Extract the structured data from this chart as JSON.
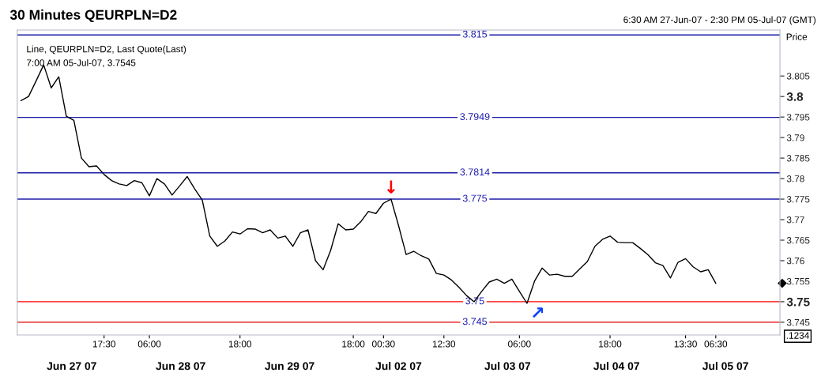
{
  "chart_data": {
    "type": "line",
    "title": "30 Minutes QEURPLN=D2",
    "subtitle": "6:30 AM 27-Jun-07 - 2:30 PM 05-Jul-07 (GMT)",
    "ylabel": "Price",
    "annotations": [
      "Line, QEURPLN=D2, Last Quote(Last)",
      "7:00 AM 05-Jul-07, 3.7545",
      ".1234",
      "Jun 27 07",
      "Jun 28 07",
      "Jun 29 07",
      "Jul 02 07",
      "Jul 03 07",
      "Jul 04 07",
      "Jul 05 07",
      {
        "text": "↓",
        "y": 3.775
      },
      {
        "text": "↗",
        "y": 3.7496
      }
    ],
    "categories": [
      null,
      null,
      null,
      null,
      null,
      null,
      null,
      null,
      null,
      null,
      null,
      "17:30",
      null,
      null,
      null,
      null,
      null,
      "06:00",
      null,
      null,
      null,
      null,
      null,
      null,
      null,
      null,
      null,
      null,
      null,
      "18:00",
      null,
      null,
      null,
      null,
      null,
      null,
      null,
      null,
      null,
      null,
      null,
      null,
      null,
      null,
      "18:00",
      null,
      null,
      null,
      "00:30",
      null,
      null,
      null,
      null,
      null,
      null,
      null,
      "12:30",
      null,
      null,
      null,
      null,
      null,
      null,
      null,
      null,
      null,
      "06:00",
      null,
      null,
      null,
      null,
      null,
      null,
      null,
      null,
      null,
      null,
      null,
      "18:00",
      null,
      null,
      null,
      null,
      null,
      null,
      null,
      null,
      null,
      "13:30",
      null,
      null,
      null,
      "06:30",
      null,
      null,
      null,
      null,
      null,
      null,
      null,
      null
    ],
    "series": [
      {
        "color": "#000000",
        "values": [
          3.799,
          3.8,
          3.8038,
          3.8077,
          3.8021,
          3.8048,
          3.7952,
          3.7942,
          3.785,
          3.7829,
          3.7831,
          3.781,
          3.7795,
          3.7787,
          3.7783,
          3.7795,
          3.779,
          3.7758,
          3.78,
          3.7787,
          3.776,
          3.7782,
          3.7805,
          3.7775,
          3.7748,
          3.766,
          3.7635,
          3.7648,
          3.767,
          3.7665,
          3.7678,
          3.7677,
          3.7668,
          3.7675,
          3.7655,
          3.766,
          3.7635,
          3.7668,
          3.7675,
          3.76,
          3.7578,
          3.7625,
          3.769,
          3.7675,
          3.7677,
          3.7695,
          3.772,
          3.7715,
          3.774,
          3.775,
          3.7685,
          3.7615,
          3.7623,
          3.7612,
          3.7604,
          3.7569,
          3.7565,
          3.7553,
          3.7535,
          3.7515,
          3.75,
          3.7525,
          3.7548,
          3.7555,
          3.7545,
          3.7555,
          3.7525,
          3.7496,
          3.755,
          3.7582,
          3.7565,
          3.7567,
          3.7562,
          3.7562,
          3.758,
          3.7598,
          3.7635,
          3.7652,
          3.766,
          3.7645,
          3.7644,
          3.7644,
          3.763,
          3.7615,
          3.7595,
          3.7588,
          3.7558,
          3.7596,
          3.7605,
          3.7585,
          3.7573,
          3.7578,
          3.7545,
          null,
          null,
          null,
          null,
          null,
          null,
          null,
          null
        ]
      }
    ],
    "ylim": [
      3.7419,
      3.8162
    ],
    "yticks": [
      3.745,
      3.75,
      3.755,
      3.76,
      3.765,
      3.77,
      3.775,
      3.78,
      3.785,
      3.79,
      3.795,
      3.8,
      3.805
    ],
    "ref_lines": [
      {
        "axis": "y",
        "value": 3.815,
        "label": "3.815",
        "color": "#1c1ca8"
      },
      {
        "axis": "y",
        "value": 3.7949,
        "label": "3.7949",
        "color": "#1c1ca8"
      },
      {
        "axis": "y",
        "value": 3.7814,
        "label": "3.7814",
        "color": "#1c1ca8"
      },
      {
        "axis": "y",
        "value": 3.775,
        "label": "3.775",
        "color": "#1c1ca8"
      },
      {
        "axis": "y",
        "value": 3.75,
        "label": "3.75",
        "color": "#ff0000"
      },
      {
        "axis": "y",
        "value": 3.745,
        "label": "3.745",
        "color": "#e00000"
      }
    ],
    "grid": false,
    "marker": "none",
    "line_style": "solid"
  }
}
